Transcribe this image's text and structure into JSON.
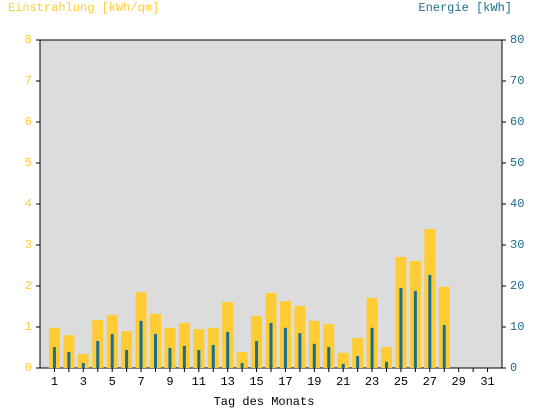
{
  "chart_data": {
    "type": "bar",
    "y_label": "Einstrahlung [kWh/qm]",
    "y2_label": "Energie [kWh]",
    "x_label": "Tag des Monats",
    "categories": [
      "1",
      null,
      "3",
      null,
      "5",
      null,
      "7",
      null,
      "9",
      null,
      "11",
      null,
      "13",
      null,
      "15",
      null,
      "17",
      null,
      "19",
      null,
      "21",
      null,
      "23",
      null,
      "25",
      null,
      "27",
      null,
      "29",
      null,
      "31"
    ],
    "series": [
      {
        "name": "Einstrahlung [kWh/qm]",
        "color": "#ffcc33",
        "axis": "y",
        "values": [
          0.98,
          0.8,
          0.34,
          1.17,
          1.29,
          0.9,
          1.85,
          1.32,
          0.98,
          1.1,
          0.95,
          0.98,
          1.61,
          0.39,
          1.27,
          1.83,
          1.63,
          1.51,
          1.15,
          1.07,
          0.37,
          0.73,
          1.71,
          0.51,
          2.71,
          2.61,
          3.39,
          1.98,
          null,
          null,
          null
        ]
      },
      {
        "name": "Energie [kWh]",
        "color": "#1a6e8e",
        "axis": "y2",
        "values": [
          5.1,
          3.9,
          1.2,
          6.6,
          8.3,
          4.4,
          11.5,
          8.3,
          4.9,
          5.4,
          4.4,
          5.6,
          8.8,
          1.2,
          6.6,
          11.0,
          9.8,
          8.5,
          5.9,
          5.1,
          1.0,
          2.9,
          9.8,
          1.5,
          19.5,
          18.8,
          22.7,
          10.5,
          null,
          null,
          null
        ]
      }
    ],
    "ylim": [
      0,
      8
    ],
    "yticks": [
      0,
      1,
      2,
      3,
      4,
      5,
      6,
      7,
      8
    ],
    "y2lim": [
      0,
      80
    ],
    "y2ticks": [
      0,
      10,
      20,
      30,
      40,
      50,
      60,
      70,
      80
    ],
    "plot_background": "#dcdcdc"
  }
}
